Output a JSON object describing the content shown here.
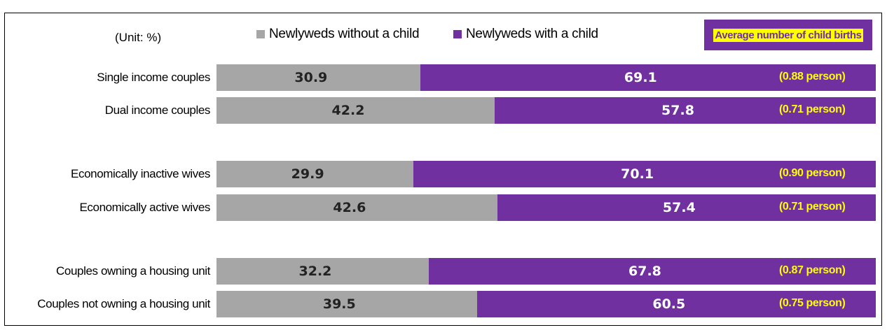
{
  "colors": {
    "without_child": "#a6a6a6",
    "with_child": "#7030a0",
    "highlight": "#ffff00"
  },
  "chart_data": {
    "type": "bar",
    "orientation": "horizontal",
    "stacked": true,
    "unit_label": "(Unit: %)",
    "categories": [
      "Single income couples",
      "Dual income couples",
      "Economically inactive wives",
      "Economically active wives",
      "Couples owning a housing unit",
      "Couples not owning a housing unit"
    ],
    "series": [
      {
        "name": "Newlyweds without a child",
        "values": [
          30.9,
          42.2,
          29.9,
          42.6,
          32.2,
          39.5
        ]
      },
      {
        "name": "Newlyweds with a child",
        "values": [
          69.1,
          57.8,
          70.1,
          57.4,
          67.8,
          60.5
        ]
      }
    ],
    "average_label": "Average number of child births",
    "average_values": [
      "(0.88 person)",
      "(0.71 person)",
      "(0.90 person)",
      "(0.71 person)",
      "(0.87 person)",
      "(0.75 person)"
    ],
    "xlim": [
      0,
      100
    ],
    "grid": false,
    "legend_position": "top"
  }
}
